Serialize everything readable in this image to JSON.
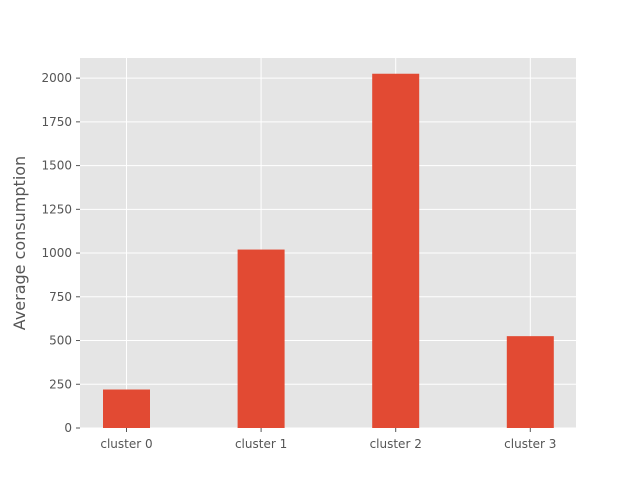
{
  "chart_data": {
    "type": "bar",
    "title": "",
    "xlabel": "",
    "ylabel": "Average consumption",
    "categories": [
      "cluster 0",
      "cluster 1",
      "cluster 2",
      "cluster 3"
    ],
    "values": [
      220,
      1020,
      2025,
      525
    ],
    "ylim": [
      0,
      2115
    ],
    "yticks": [
      0,
      250,
      500,
      750,
      1000,
      1250,
      1500,
      1750,
      2000
    ],
    "grid": true,
    "colors": {
      "bar": "#E24A33",
      "plot_background": "#E5E5E5",
      "grid": "#FFFFFF",
      "text": "#555555"
    }
  }
}
